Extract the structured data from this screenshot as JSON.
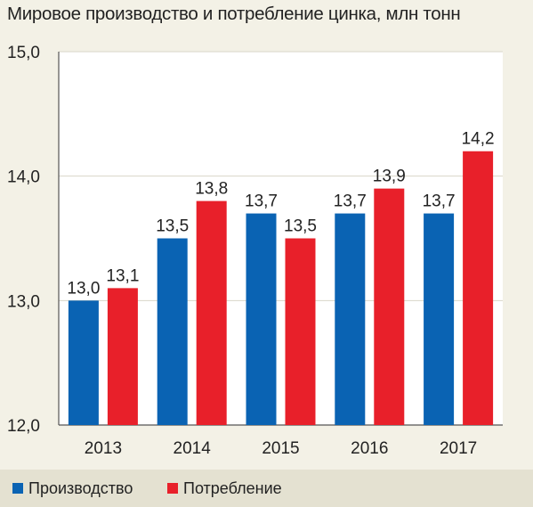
{
  "title": "Мировое производство и потребление цинка, млн тонн",
  "colors": {
    "production": "#0a63b3",
    "consumption": "#e8202a",
    "axis": "#555555",
    "grid": "#ffffff",
    "plot_bg": "#ffffff"
  },
  "legend": [
    {
      "key": "production",
      "label": "Производство"
    },
    {
      "key": "consumption",
      "label": "Потребление"
    }
  ],
  "chart_data": {
    "type": "bar",
    "title": "Мировое производство и потребление цинка, млн тонн",
    "xlabel": "",
    "ylabel": "",
    "categories": [
      "2013",
      "2014",
      "2015",
      "2016",
      "2017"
    ],
    "series": [
      {
        "name": "Производство",
        "key": "production",
        "values": [
          13.0,
          13.5,
          13.7,
          13.7,
          13.7
        ],
        "labels": [
          "13,0",
          "13,5",
          "13,7",
          "13,7",
          "13,7"
        ]
      },
      {
        "name": "Потребление",
        "key": "consumption",
        "values": [
          13.1,
          13.8,
          13.5,
          13.9,
          14.2
        ],
        "labels": [
          "13,1",
          "13,8",
          "13,5",
          "13,9",
          "14,2"
        ]
      }
    ],
    "ylim": [
      12.0,
      15.0
    ],
    "yticks": [
      12.0,
      13.0,
      14.0,
      15.0
    ],
    "ytick_labels": [
      "12,0",
      "13,0",
      "14,0",
      "15,0"
    ],
    "grid": true,
    "legend_position": "bottom-left"
  }
}
